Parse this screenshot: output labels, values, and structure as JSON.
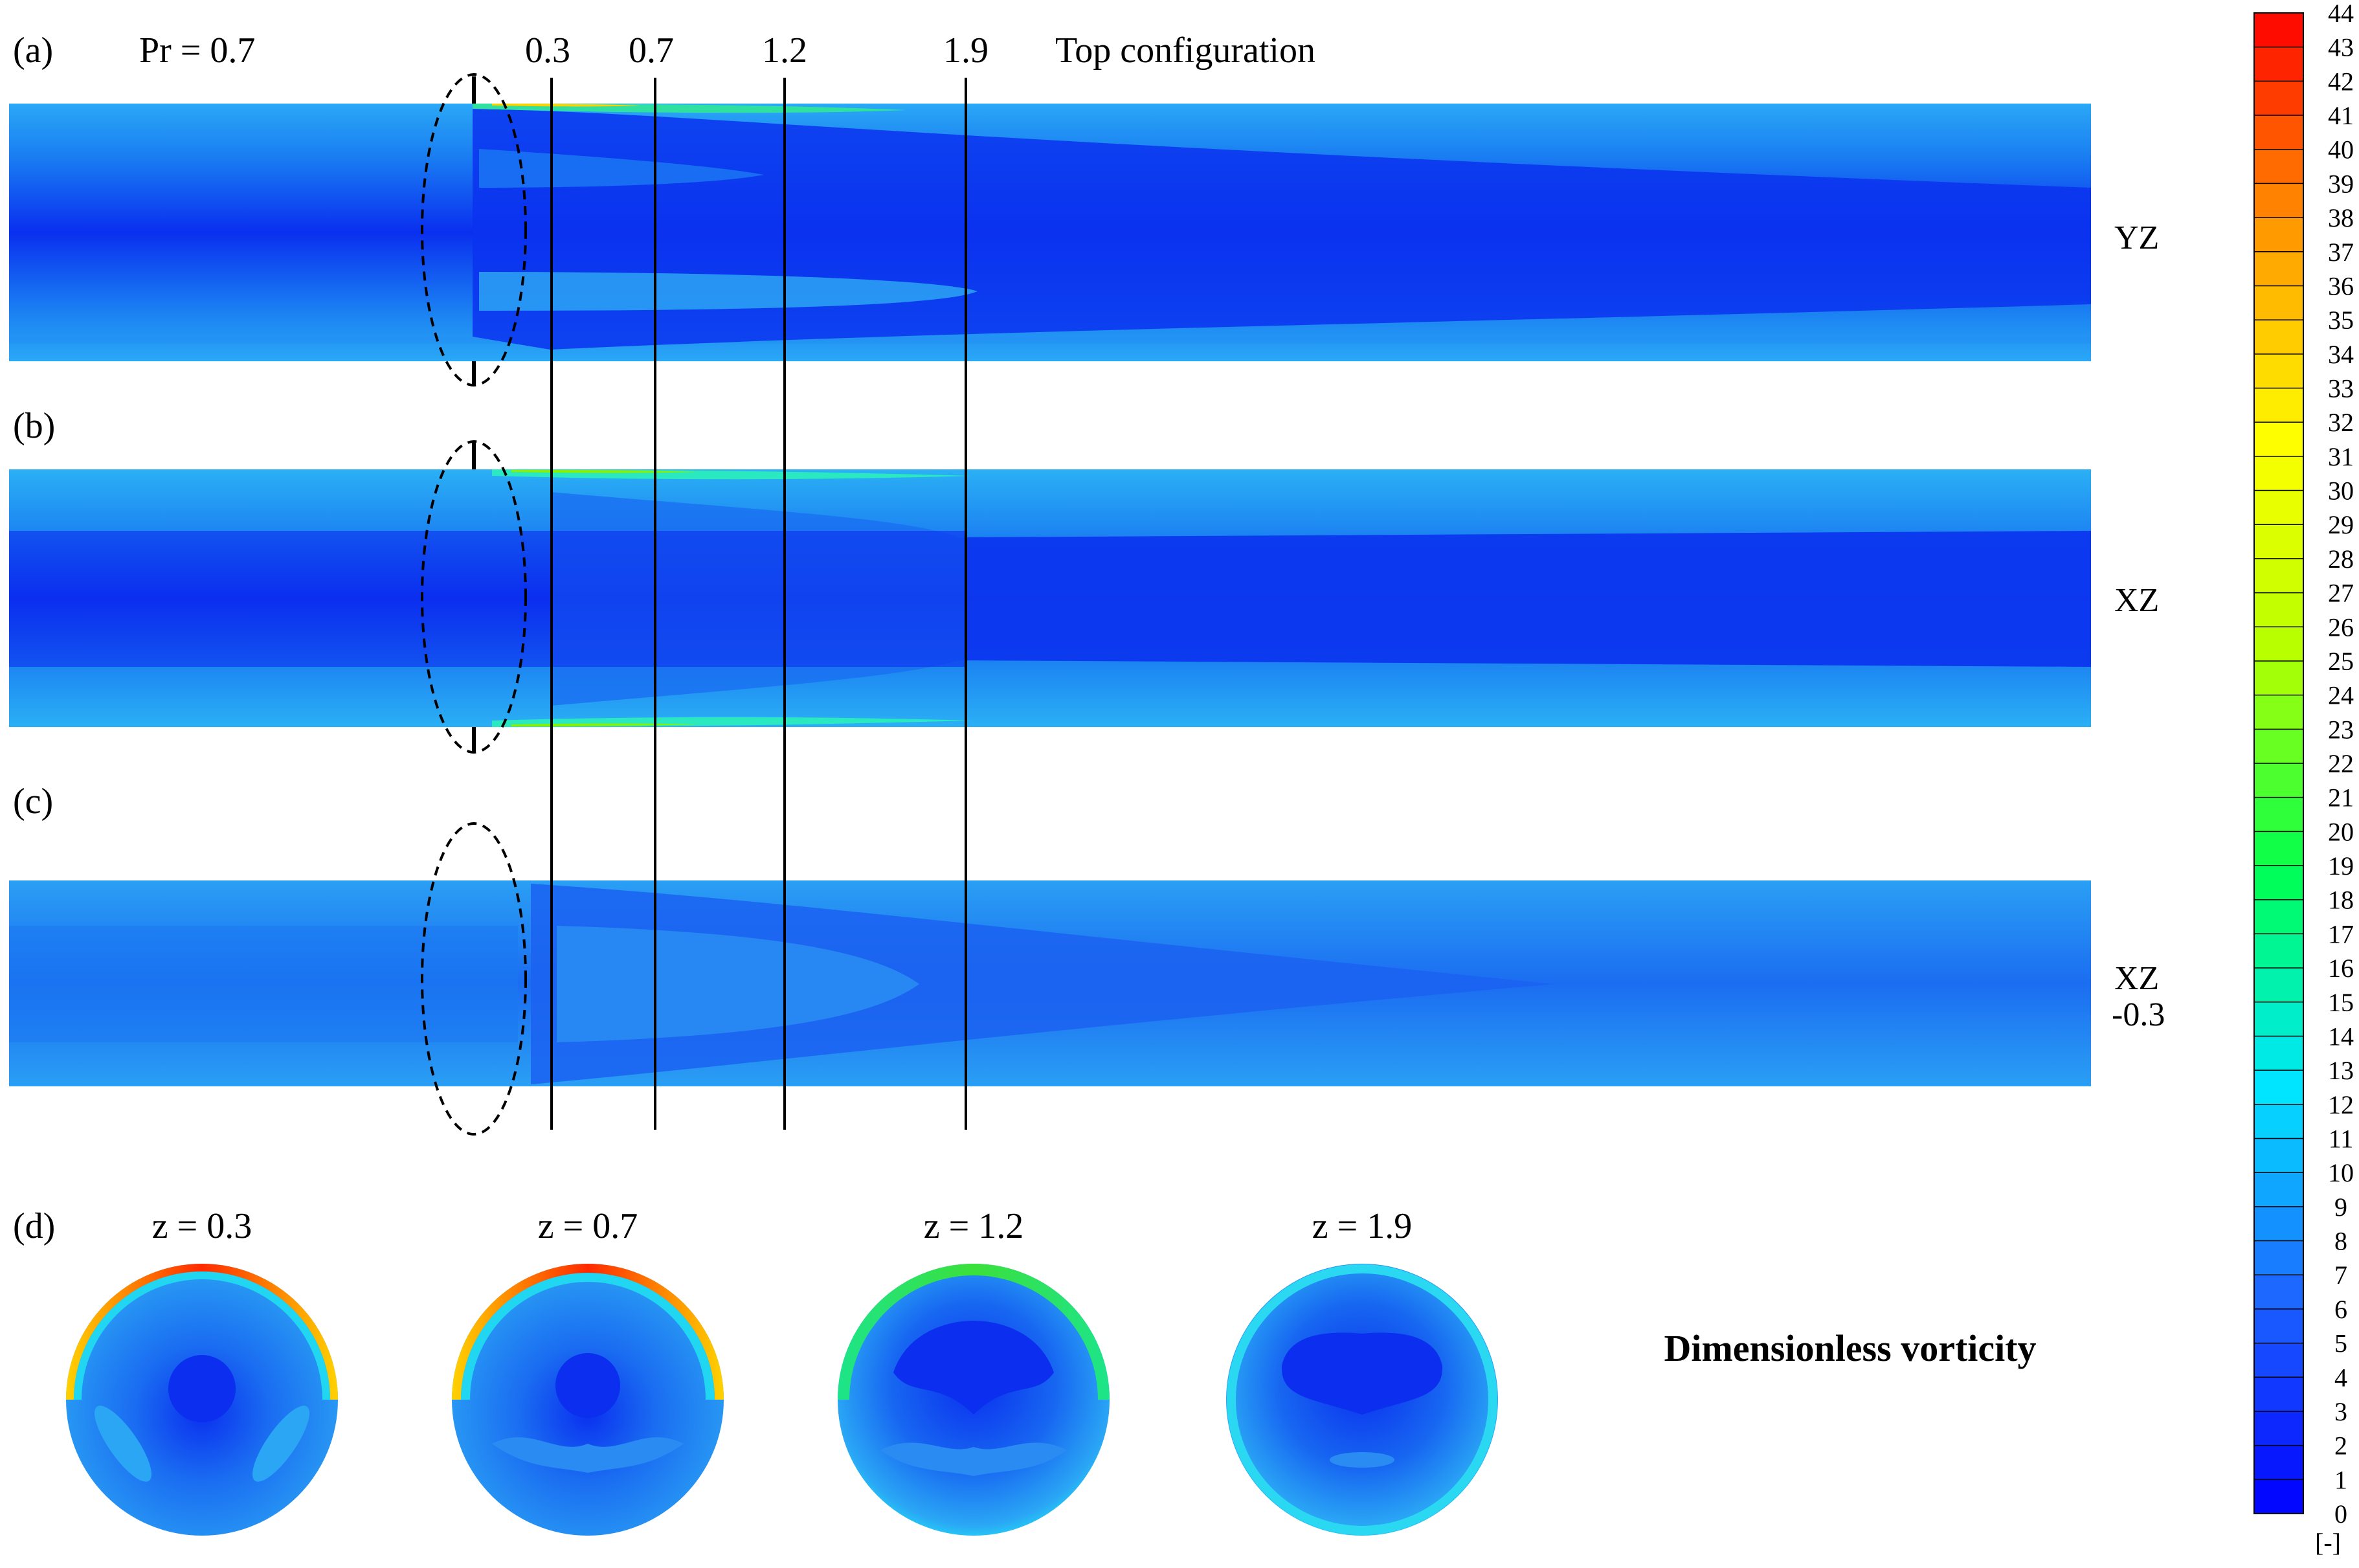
{
  "panels": [
    {
      "tag": "(a)",
      "plane": "YZ",
      "plane_sub": ""
    },
    {
      "tag": "(b)",
      "plane": "XZ",
      "plane_sub": ""
    },
    {
      "tag": "(c)",
      "plane": "XZ",
      "plane_sub": "-0.3"
    }
  ],
  "prandtl_label": "Pr = 0.7",
  "configuration_label": "Top configuration",
  "section_positions": [
    "0.3",
    "0.7",
    "1.2",
    "1.9"
  ],
  "cross_sections": {
    "tag": "(d)",
    "titles": [
      "z = 0.3",
      "z = 0.7",
      "z = 1.2",
      "z = 1.9"
    ]
  },
  "legend_title": "Dimensionless vorticity",
  "colorbar": {
    "min": 0,
    "max": 44,
    "ticks": [
      "0",
      "1",
      "2",
      "3",
      "4",
      "5",
      "6",
      "7",
      "8",
      "9",
      "10",
      "11",
      "12",
      "13",
      "14",
      "15",
      "16",
      "17",
      "18",
      "19",
      "20",
      "21",
      "22",
      "23",
      "24",
      "25",
      "26",
      "27",
      "28",
      "29",
      "30",
      "31",
      "32",
      "33",
      "34",
      "35",
      "36",
      "37",
      "38",
      "39",
      "40",
      "41",
      "42",
      "43",
      "44"
    ],
    "unit": "[-]",
    "colors": [
      "#0000ff",
      "#1e64ff",
      "#00e6ff",
      "#00ff50",
      "#b4ff00",
      "#ffff00",
      "#ff9600",
      "#ff0000"
    ]
  }
}
